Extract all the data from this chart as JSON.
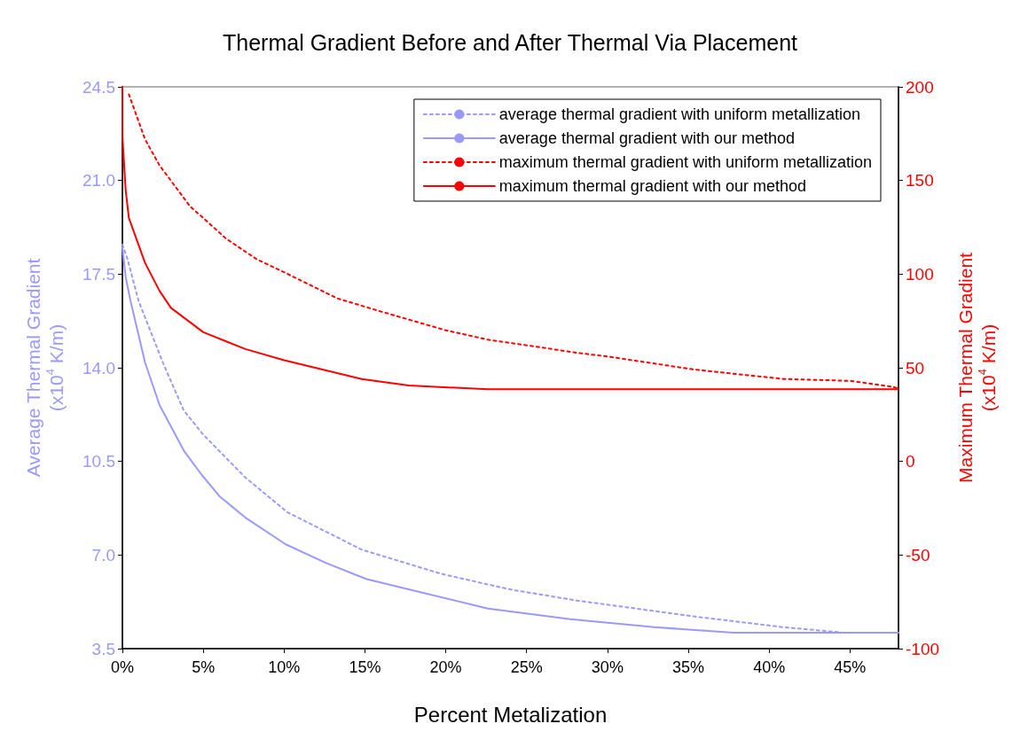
{
  "chart_data": {
    "type": "line",
    "title": "Thermal Gradient Before and After Thermal Via Placement",
    "xlabel": "Percent Metalization",
    "ylabel": "Average Thermal Gradient\n(x10$^{4}$ K/m)",
    "y2label": "Maximum Thermal Gradient\n(x10$^{4}$ K/m)",
    "xlim": [
      0,
      48
    ],
    "xticks": [
      {
        "value": 0,
        "label": "0%"
      },
      {
        "value": 5,
        "label": "5%"
      },
      {
        "value": 10,
        "label": "10%"
      },
      {
        "value": 15,
        "label": "15%"
      },
      {
        "value": 20,
        "label": "20%"
      },
      {
        "value": 25,
        "label": "25%"
      },
      {
        "value": 30,
        "label": "30%"
      },
      {
        "value": 35,
        "label": "35%"
      },
      {
        "value": 40,
        "label": "40%"
      },
      {
        "value": 45,
        "label": "45%"
      }
    ],
    "ylim": [
      3.5,
      24.5
    ],
    "yticks": [
      3.5,
      {
        "value": 7,
        "label": "7.0"
      },
      10.5,
      {
        "value": 14,
        "label": "14.0"
      },
      17.5,
      {
        "value": 21,
        "label": "21.0"
      },
      24.5
    ],
    "y2lim": [
      -100,
      200
    ],
    "y2ticks": [
      -100,
      -50,
      0,
      50,
      100,
      150,
      200
    ],
    "grid": false,
    "legend": "top right",
    "marker": "none",
    "series": [
      {
        "name": "average thermal gradient with uniform metallization",
        "color": "#9999ff",
        "line_style": "dotted",
        "x": [
          0,
          0.3,
          1,
          2.5,
          3,
          3.8,
          5,
          7.6,
          10.2,
          14.8,
          19.7,
          22.6,
          24.1,
          28.1,
          35.4,
          40.9,
          44.6,
          48
        ],
        "values": [
          18.6,
          18.1,
          16.5,
          14.2,
          13.5,
          12.4,
          11.5,
          9.9,
          8.6,
          7.2,
          6.3,
          5.9,
          5.7,
          5.3,
          4.7,
          4.3,
          4.1,
          4.1
        ]
      },
      {
        "name": "average thermal gradient with our method",
        "color": "#9999ff",
        "line_style": "solid",
        "x": [
          0,
          0.2,
          0.5,
          1.4,
          2.3,
          3.8,
          4.9,
          6,
          7.6,
          10.1,
          12.6,
          15.1,
          17.8,
          22.6,
          27.7,
          32.9,
          37.8,
          48
        ],
        "values": [
          18.5,
          17.4,
          16.5,
          14.2,
          12.6,
          10.9,
          10,
          9.2,
          8.4,
          7.4,
          6.7,
          6.1,
          5.7,
          5,
          4.6,
          4.3,
          4.1,
          4.1
        ]
      },
      {
        "name": "maximum thermal gradient with uniform metallization",
        "color": "#ff0000",
        "line_style": "dotted",
        "axis": "y2",
        "x": [
          0.4,
          1.4,
          2.3,
          4.2,
          5,
          6.4,
          8.3,
          10,
          13.3,
          16,
          20,
          22.6,
          25,
          28.1,
          30,
          35.4,
          40.9,
          45,
          47.5,
          48
        ],
        "values": [
          196,
          172,
          158,
          136,
          130,
          119,
          108,
          101,
          87,
          80,
          70,
          65,
          62,
          58,
          56,
          49,
          44,
          43,
          40,
          39
        ]
      },
      {
        "name": "maximum thermal gradient with our method",
        "color": "#ff0000",
        "line_style": "solid",
        "axis": "y2",
        "x": [
          0,
          0,
          0.2,
          0.4,
          1.4,
          2.3,
          3,
          5,
          7.6,
          10,
          14.8,
          17.7,
          22.6,
          48
        ],
        "values": [
          200,
          174,
          145,
          130,
          106,
          91,
          82,
          69,
          60,
          54,
          44,
          40.5,
          38.5,
          38.5
        ]
      }
    ]
  }
}
